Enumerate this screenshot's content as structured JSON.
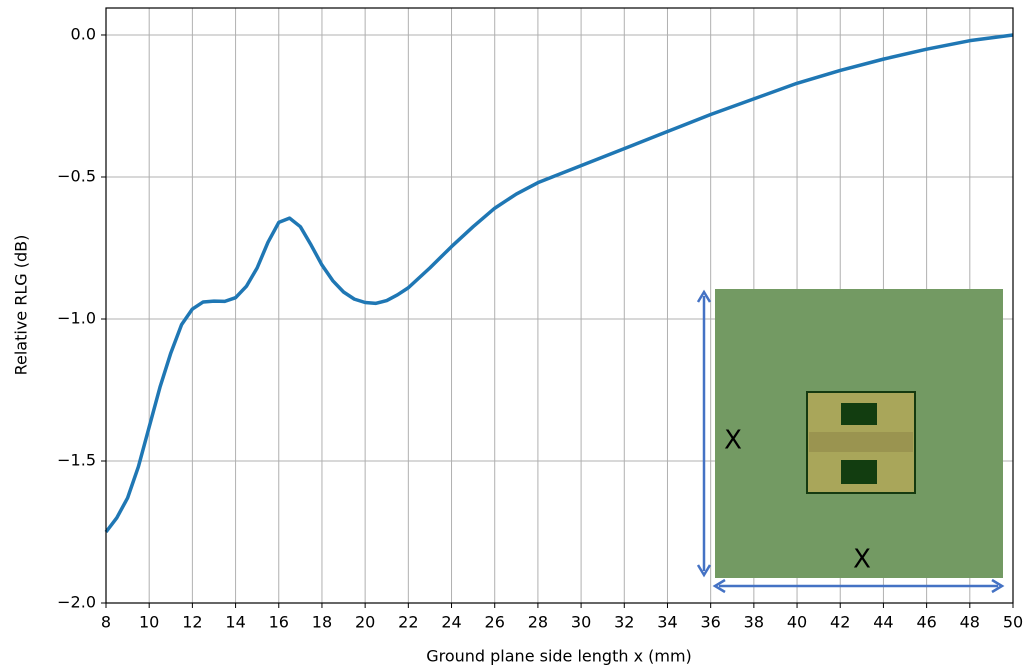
{
  "chart_data": {
    "type": "line",
    "xlabel": "Ground plane side length x (mm)",
    "ylabel": "Relative RLG (dB)",
    "x": [
      8,
      8.5,
      9,
      9.5,
      10,
      10.5,
      11,
      11.5,
      12,
      12.5,
      13,
      13.5,
      14,
      14.5,
      15,
      15.5,
      16,
      16.5,
      17,
      17.5,
      18,
      18.5,
      19,
      19.5,
      20,
      20.5,
      21,
      21.5,
      22,
      23,
      24,
      25,
      26,
      27,
      28,
      29,
      30,
      32,
      34,
      36,
      38,
      40,
      42,
      44,
      46,
      48,
      50
    ],
    "series": [
      {
        "color": "#1f77b4",
        "values": [
          -1.75,
          -1.7,
          -1.63,
          -1.52,
          -1.38,
          -1.24,
          -1.12,
          -1.02,
          -0.965,
          -0.94,
          -0.937,
          -0.938,
          -0.925,
          -0.885,
          -0.82,
          -0.73,
          -0.66,
          -0.645,
          -0.675,
          -0.74,
          -0.81,
          -0.865,
          -0.905,
          -0.93,
          -0.942,
          -0.945,
          -0.935,
          -0.915,
          -0.89,
          -0.82,
          -0.745,
          -0.675,
          -0.61,
          -0.56,
          -0.52,
          -0.49,
          -0.46,
          -0.4,
          -0.34,
          -0.28,
          -0.225,
          -0.17,
          -0.125,
          -0.085,
          -0.05,
          -0.02,
          0.0
        ]
      }
    ],
    "xlim": [
      8,
      50
    ],
    "xticks": [
      8,
      10,
      12,
      14,
      16,
      18,
      20,
      22,
      24,
      26,
      28,
      30,
      32,
      34,
      36,
      38,
      40,
      42,
      44,
      46,
      48,
      50
    ],
    "ylim": [
      -2.0,
      0.095
    ],
    "yticks": [
      {
        "value": -2.0,
        "label": "−2.0"
      },
      {
        "value": -1.5,
        "label": "−1.5"
      },
      {
        "value": -1.0,
        "label": "−1.0"
      },
      {
        "value": -0.5,
        "label": "−0.5"
      },
      {
        "value": 0,
        "label": "0.0"
      }
    ],
    "grid": true,
    "inset_labels": [
      "X",
      "X"
    ]
  }
}
